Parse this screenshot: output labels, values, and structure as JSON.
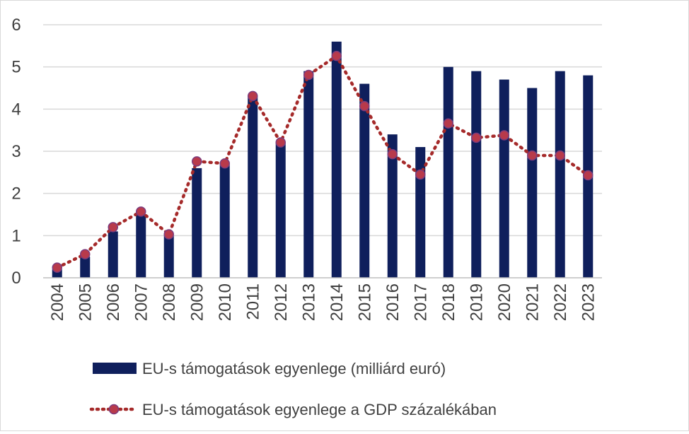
{
  "chart_data": {
    "type": "bar+line",
    "categories": [
      "2004",
      "2005",
      "2006",
      "2007",
      "2008",
      "2009",
      "2010",
      "2011",
      "2012",
      "2013",
      "2014",
      "2015",
      "2016",
      "2017",
      "2018",
      "2019",
      "2020",
      "2021",
      "2022",
      "2023"
    ],
    "series": [
      {
        "name": "EU-s támogatások egyenlege (milliárd euró)",
        "type": "bar",
        "color": "#0f1f5c",
        "values": [
          0.2,
          0.5,
          1.1,
          1.5,
          1.0,
          2.6,
          2.7,
          4.3,
          3.2,
          4.9,
          5.6,
          4.6,
          3.4,
          3.1,
          5.0,
          4.9,
          4.7,
          4.5,
          4.9,
          4.8
        ]
      },
      {
        "name": "EU-s támogatások egyenlege a GDP százalékában",
        "type": "line",
        "style": "dotted",
        "color": "#a52a2a",
        "marker_color": "#b83a4b",
        "values": [
          0.24,
          0.56,
          1.2,
          1.57,
          1.03,
          2.76,
          2.71,
          4.31,
          3.21,
          4.81,
          5.26,
          4.07,
          2.93,
          2.45,
          3.66,
          3.32,
          3.38,
          2.9,
          2.9,
          2.43
        ]
      }
    ],
    "y_ticks": [
      "0",
      "1",
      "2",
      "3",
      "4",
      "5",
      "6"
    ],
    "ylim": [
      0,
      6
    ],
    "grid": true,
    "legend_position": "bottom"
  }
}
